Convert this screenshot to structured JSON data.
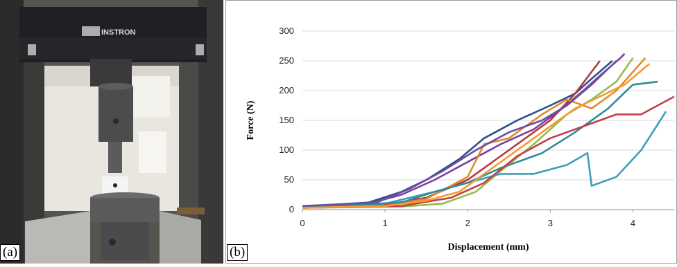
{
  "panels": {
    "left_label": "(a)",
    "right_label": "(b)"
  },
  "photo": {
    "brand_text": "INSTRON",
    "colors": {
      "frame": "#1f2024",
      "background_wall": "#e8e6df",
      "steel": "#4b4d4d",
      "table": "#b9b9b6"
    }
  },
  "chart_data": {
    "type": "line",
    "title": "",
    "xlabel": "Displacement (mm)",
    "ylabel": "Force (N)",
    "xlim": [
      0,
      4.5
    ],
    "ylim": [
      0,
      300
    ],
    "x_ticks": [
      "0",
      "1",
      "2",
      "3",
      "4"
    ],
    "y_ticks": [
      "0",
      "50",
      "100",
      "150",
      "200",
      "250",
      "300"
    ],
    "grid": "horizontal",
    "legend": "none",
    "series": [
      {
        "color": "#7b3f9e",
        "x": [
          0,
          0.8,
          1.2,
          1.6,
          2.0,
          2.4,
          2.8,
          3.1,
          3.4,
          3.6,
          3.85,
          3.9
        ],
        "y": [
          5,
          10,
          25,
          50,
          80,
          110,
          135,
          165,
          200,
          225,
          255,
          262
        ]
      },
      {
        "color": "#2b4f8f",
        "x": [
          0,
          0.8,
          1.2,
          1.5,
          1.9,
          2.2,
          2.6,
          3.0,
          3.3,
          3.5,
          3.75
        ],
        "y": [
          5,
          12,
          30,
          50,
          85,
          120,
          150,
          175,
          195,
          220,
          250
        ]
      },
      {
        "color": "#b03a3a",
        "x": [
          0,
          1.0,
          1.5,
          2.0,
          2.5,
          3.0,
          3.3,
          3.6
        ],
        "y": [
          3,
          8,
          20,
          50,
          100,
          150,
          195,
          250
        ]
      },
      {
        "color": "#e08a2a",
        "x": [
          0,
          1.0,
          1.5,
          2.0,
          2.2,
          2.5,
          2.9,
          3.2,
          3.5,
          3.8,
          4.15
        ],
        "y": [
          3,
          6,
          18,
          55,
          110,
          120,
          160,
          185,
          170,
          200,
          255
        ]
      },
      {
        "color": "#8fbf4a",
        "x": [
          0,
          1.2,
          1.7,
          2.1,
          2.4,
          2.8,
          3.2,
          3.5,
          3.8,
          4.0
        ],
        "y": [
          3,
          5,
          10,
          30,
          65,
          110,
          160,
          185,
          215,
          255
        ]
      },
      {
        "color": "#3aa2b5",
        "x": [
          0,
          1.0,
          1.6,
          2.0,
          2.4,
          2.8,
          3.2,
          3.45,
          3.5,
          3.8,
          4.1,
          4.4
        ],
        "y": [
          4,
          10,
          30,
          45,
          60,
          60,
          75,
          95,
          40,
          55,
          100,
          165
        ]
      },
      {
        "color": "#2f8a9a",
        "x": [
          0,
          1.2,
          1.6,
          2.0,
          2.4,
          2.9,
          3.3,
          3.7,
          4.0,
          4.3
        ],
        "y": [
          4,
          12,
          30,
          45,
          70,
          95,
          130,
          170,
          210,
          215
        ]
      },
      {
        "color": "#c0404a",
        "x": [
          0,
          1.2,
          1.8,
          2.2,
          2.6,
          3.0,
          3.4,
          3.8,
          4.1,
          4.5
        ],
        "y": [
          3,
          6,
          20,
          45,
          90,
          120,
          140,
          160,
          160,
          190
        ]
      },
      {
        "color": "#f59a30",
        "x": [
          0,
          1.0,
          1.5,
          1.9,
          2.3,
          2.7,
          3.0,
          3.3,
          3.6,
          3.9,
          4.2
        ],
        "y": [
          3,
          6,
          15,
          30,
          70,
          110,
          140,
          170,
          190,
          210,
          245
        ]
      },
      {
        "color": "#6a4ea0",
        "x": [
          0,
          0.9,
          1.3,
          1.7,
          2.1,
          2.5,
          2.9,
          3.2,
          3.5,
          3.8
        ],
        "y": [
          6,
          12,
          35,
          65,
          100,
          130,
          150,
          175,
          210,
          250
        ]
      }
    ]
  }
}
